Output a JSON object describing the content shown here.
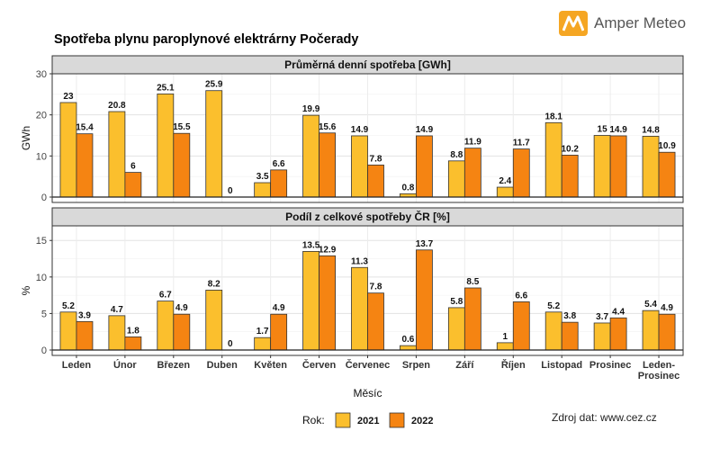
{
  "brand": {
    "name": "Amper Meteo",
    "icon": "amper-meteo-logo-icon",
    "color": "#f5a623"
  },
  "source": "Zdroj dat: www.cez.cz",
  "chart_data": {
    "type": "bar",
    "title": "Spotřeba plynu paroplynové elektrárny Počerady",
    "xlabel": "Měsíc",
    "categories": [
      "Leden",
      "Únor",
      "Březen",
      "Duben",
      "Květen",
      "Červen",
      "Červenec",
      "Srpen",
      "Září",
      "Říjen",
      "Listopad",
      "Prosinec",
      "Leden-\nProsinec"
    ],
    "legend": {
      "title": "Rok:",
      "position": "bottom"
    },
    "colors": {
      "2021": "#fbbf2d",
      "2022": "#f58412"
    },
    "grid": true,
    "panels": [
      {
        "strip": "Průměrná denní spotřeba [GWh]",
        "ylabel": "GWh",
        "ylim": [
          0,
          30
        ],
        "yticks": [
          0,
          10,
          20,
          30
        ],
        "series": [
          {
            "name": "2021",
            "values": [
              23,
              20.8,
              25.1,
              25.9,
              3.5,
              19.9,
              14.9,
              0.8,
              8.8,
              2.4,
              18.1,
              15,
              14.8
            ]
          },
          {
            "name": "2022",
            "values": [
              15.4,
              6,
              15.5,
              0,
              6.6,
              15.6,
              7.8,
              14.9,
              11.9,
              11.7,
              10.2,
              14.9,
              10.9
            ]
          }
        ]
      },
      {
        "strip": "Podíl z celkové spotřeby ČR [%]",
        "ylabel": "%",
        "ylim": [
          0,
          17
        ],
        "yticks": [
          0,
          5,
          10,
          15
        ],
        "series": [
          {
            "name": "2021",
            "values": [
              5.2,
              4.7,
              6.7,
              8.2,
              1.7,
              13.5,
              11.3,
              0.6,
              5.8,
              1,
              5.2,
              3.7,
              5.4
            ]
          },
          {
            "name": "2022",
            "values": [
              3.9,
              1.8,
              4.9,
              0,
              4.9,
              12.9,
              7.8,
              13.7,
              8.5,
              6.6,
              3.8,
              4.4,
              4.9
            ]
          }
        ]
      }
    ]
  }
}
